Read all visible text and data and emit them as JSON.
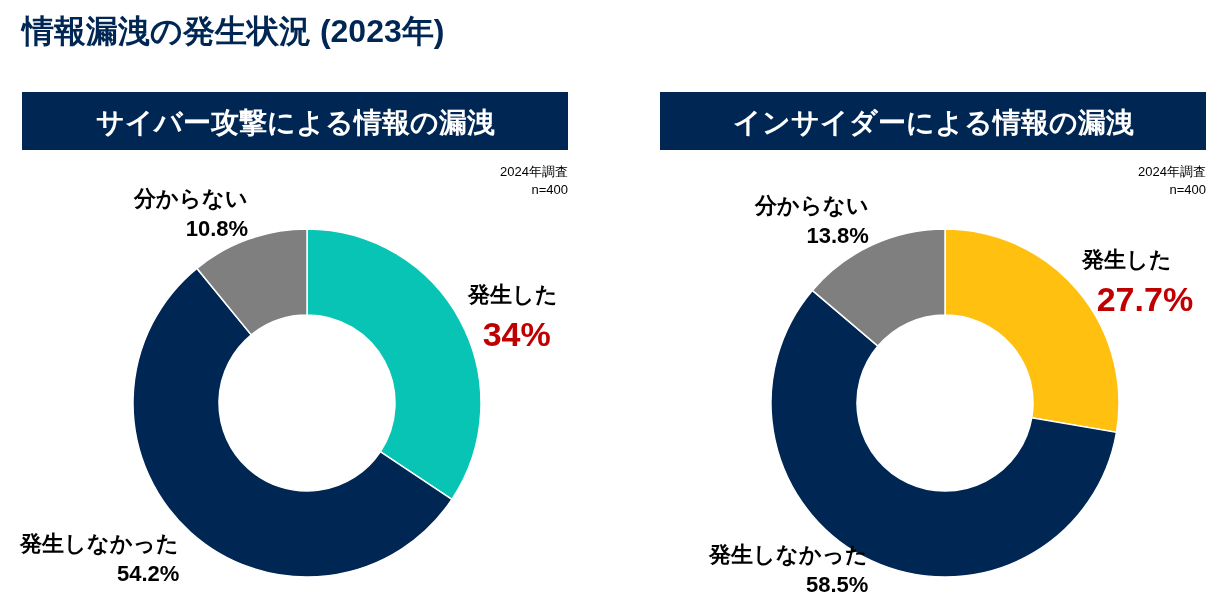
{
  "chart_data": [
    {
      "type": "donut",
      "title": "情報漏洩の発生状況 (2023年)",
      "subtitle": "サイバー攻撃による情報の漏洩",
      "annotations": [
        "2024年調査",
        "n=400"
      ],
      "categories": [
        "発生した",
        "発生しなかった",
        "分からない"
      ],
      "values": [
        34,
        54.2,
        10.8
      ],
      "value_labels": [
        "34%",
        "54.2%",
        "10.8%"
      ],
      "colors": [
        "#07c4b4",
        "#002654",
        "#7f7f7f"
      ]
    },
    {
      "type": "donut",
      "subtitle": "インサイダーによる情報の漏洩",
      "annotations": [
        "2024年調査",
        "n=400"
      ],
      "categories": [
        "発生した",
        "発生しなかった",
        "分からない"
      ],
      "values": [
        27.7,
        58.5,
        13.8
      ],
      "value_labels": [
        "27.7%",
        "58.5%",
        "13.8%"
      ],
      "colors": [
        "#ffc010",
        "#002654",
        "#7f7f7f"
      ]
    }
  ]
}
